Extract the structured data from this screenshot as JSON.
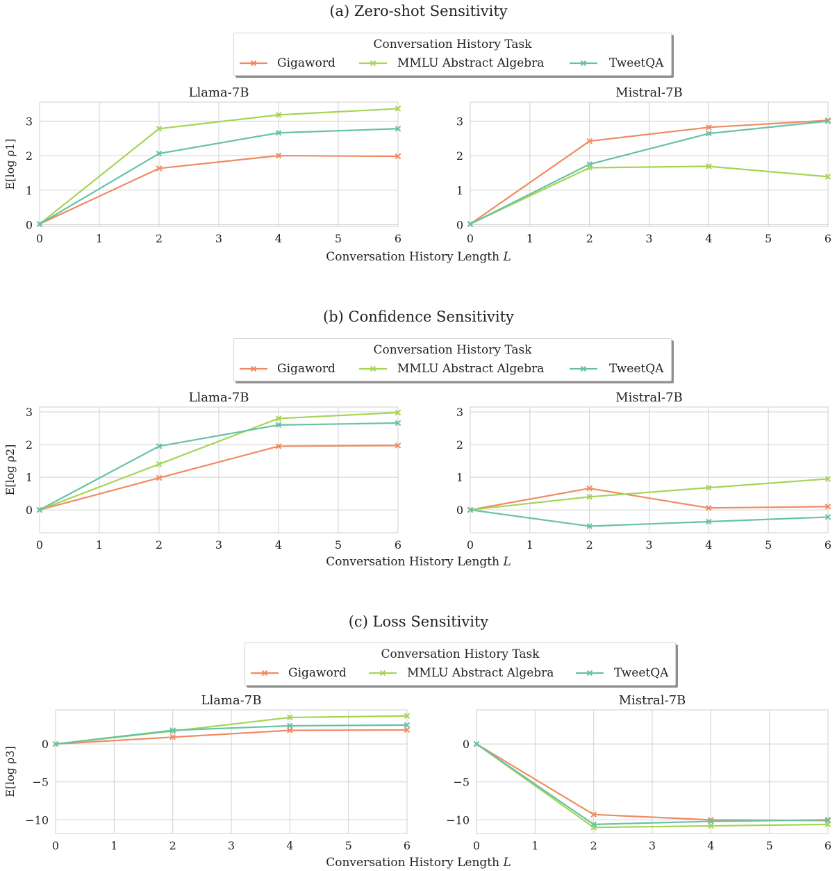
{
  "sections": [
    {
      "title": "(a) Zero-shot Sensitivity",
      "legend_title": "Conversation History Task",
      "xlabel": "Conversation History Length",
      "xlabel_var": "L",
      "ylabel": "E[log ρ1]"
    },
    {
      "title": "(b) Confidence Sensitivity",
      "legend_title": "Conversation History Task",
      "xlabel": "Conversation History Length",
      "xlabel_var": "L",
      "ylabel": "E[log ρ2]"
    },
    {
      "title": "(c) Loss Sensitivity",
      "legend_title": "Conversation History Task",
      "xlabel": "Conversation History Length",
      "xlabel_var": "L",
      "ylabel": "E[log ρ3]"
    }
  ],
  "legend": [
    {
      "name": "Gigaword",
      "color": "#f08a62"
    },
    {
      "name": "MMLU Abstract Algebra",
      "color": "#a5d554"
    },
    {
      "name": "TweetQA",
      "color": "#66c2a5"
    }
  ],
  "chart_data": [
    {
      "type": "line",
      "section": 0,
      "title": "Llama-7B",
      "ylabel": "E[log ρ1]",
      "x": [
        0,
        2,
        4,
        6
      ],
      "xlim": [
        0,
        6
      ],
      "xticks": [
        0,
        1,
        2,
        3,
        4,
        5,
        6
      ],
      "ylim": [
        -0.05,
        3.55
      ],
      "yticks": [
        0,
        1,
        2,
        3
      ],
      "grid": true,
      "series": [
        {
          "name": "Gigaword",
          "values": [
            0.02,
            1.63,
            2.0,
            1.98
          ]
        },
        {
          "name": "MMLU Abstract Algebra",
          "values": [
            0.02,
            2.78,
            3.18,
            3.36
          ]
        },
        {
          "name": "TweetQA",
          "values": [
            0.02,
            2.06,
            2.66,
            2.78
          ]
        }
      ]
    },
    {
      "type": "line",
      "section": 0,
      "title": "Mistral-7B",
      "ylabel": "",
      "x": [
        0,
        2,
        4,
        6
      ],
      "xlim": [
        0,
        6
      ],
      "xticks": [
        0,
        1,
        2,
        3,
        4,
        5,
        6
      ],
      "ylim": [
        -0.05,
        3.55
      ],
      "yticks": [
        0,
        1,
        2,
        3
      ],
      "grid": true,
      "series": [
        {
          "name": "Gigaword",
          "values": [
            0.02,
            2.42,
            2.82,
            3.02
          ]
        },
        {
          "name": "MMLU Abstract Algebra",
          "values": [
            0.02,
            1.65,
            1.69,
            1.39
          ]
        },
        {
          "name": "TweetQA",
          "values": [
            0.02,
            1.75,
            2.64,
            3.0
          ]
        }
      ]
    },
    {
      "type": "line",
      "section": 1,
      "title": "Llama-7B",
      "ylabel": "E[log ρ2]",
      "x": [
        0,
        2,
        4,
        6
      ],
      "xlim": [
        0,
        6
      ],
      "xticks": [
        0,
        1,
        2,
        3,
        4,
        5,
        6
      ],
      "ylim": [
        -0.7,
        3.15
      ],
      "yticks": [
        0,
        1,
        2,
        3
      ],
      "grid": true,
      "series": [
        {
          "name": "Gigaword",
          "values": [
            0.0,
            0.98,
            1.95,
            1.97
          ]
        },
        {
          "name": "MMLU Abstract Algebra",
          "values": [
            0.0,
            1.4,
            2.8,
            2.98
          ]
        },
        {
          "name": "TweetQA",
          "values": [
            0.0,
            1.95,
            2.6,
            2.66
          ]
        }
      ]
    },
    {
      "type": "line",
      "section": 1,
      "title": "Mistral-7B",
      "ylabel": "",
      "x": [
        0,
        2,
        4,
        6
      ],
      "xlim": [
        0,
        6
      ],
      "xticks": [
        0,
        1,
        2,
        3,
        4,
        5,
        6
      ],
      "ylim": [
        -0.7,
        3.15
      ],
      "yticks": [
        0,
        1,
        2,
        3
      ],
      "grid": true,
      "series": [
        {
          "name": "Gigaword",
          "values": [
            0.0,
            0.66,
            0.06,
            0.1
          ]
        },
        {
          "name": "MMLU Abstract Algebra",
          "values": [
            0.0,
            0.4,
            0.68,
            0.95
          ]
        },
        {
          "name": "TweetQA",
          "values": [
            0.0,
            -0.5,
            -0.36,
            -0.22
          ]
        }
      ]
    },
    {
      "type": "line",
      "section": 2,
      "title": "Llama-7B",
      "ylabel": "E[log ρ3]",
      "x": [
        0,
        2,
        4,
        6
      ],
      "xlim": [
        0,
        6
      ],
      "xticks": [
        0,
        1,
        2,
        3,
        4,
        5,
        6
      ],
      "ylim": [
        -11.8,
        4.5
      ],
      "yticks": [
        0,
        -5,
        -10
      ],
      "ytick_labels": [
        "0",
        "−5",
        "−10"
      ],
      "grid": true,
      "series": [
        {
          "name": "Gigaword",
          "values": [
            0.0,
            0.9,
            1.8,
            1.85
          ]
        },
        {
          "name": "MMLU Abstract Algebra",
          "values": [
            0.0,
            1.7,
            3.5,
            3.7
          ]
        },
        {
          "name": "TweetQA",
          "values": [
            0.0,
            1.8,
            2.4,
            2.5
          ]
        }
      ]
    },
    {
      "type": "line",
      "section": 2,
      "title": "Mistral-7B",
      "ylabel": "",
      "x": [
        0,
        2,
        4,
        6
      ],
      "xlim": [
        0,
        6
      ],
      "xticks": [
        0,
        1,
        2,
        3,
        4,
        5,
        6
      ],
      "ylim": [
        -11.8,
        4.5
      ],
      "yticks": [
        0,
        -5,
        -10
      ],
      "ytick_labels": [
        "0",
        "−5",
        "−10"
      ],
      "grid": true,
      "series": [
        {
          "name": "Gigaword",
          "values": [
            0.0,
            -9.3,
            -10.0,
            -10.1
          ]
        },
        {
          "name": "MMLU Abstract Algebra",
          "values": [
            0.0,
            -11.0,
            -10.8,
            -10.6
          ]
        },
        {
          "name": "TweetQA",
          "values": [
            0.0,
            -10.6,
            -10.2,
            -10.0
          ]
        }
      ]
    }
  ]
}
